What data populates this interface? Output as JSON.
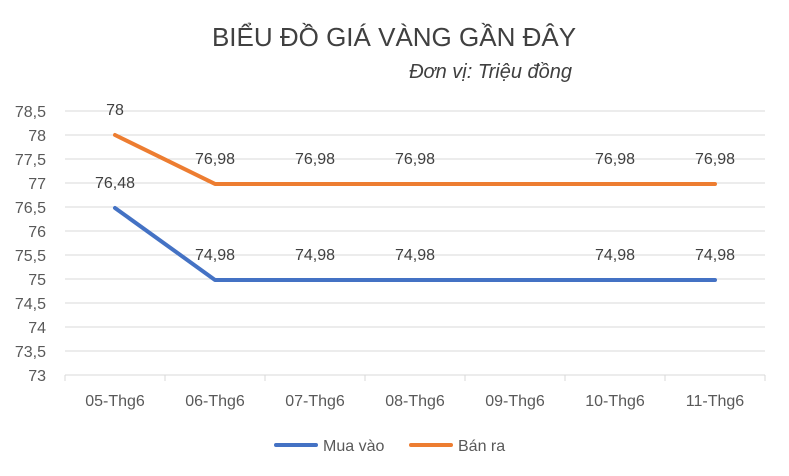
{
  "chart_data": {
    "type": "line",
    "title": "BIỂU ĐỒ GIÁ VÀNG GẦN ĐÂY",
    "subtitle": "Đơn vị: Triệu đồng",
    "categories": [
      "05-Thg6",
      "06-Thg6",
      "07-Thg6",
      "08-Thg6",
      "09-Thg6",
      "10-Thg6",
      "11-Thg6"
    ],
    "ylim": [
      73,
      78.5
    ],
    "yticks": [
      "73",
      "73,5",
      "74",
      "74,5",
      "75",
      "75,5",
      "76",
      "76,5",
      "77",
      "77,5",
      "78",
      "78,5"
    ],
    "grid": true,
    "legend": "bottom",
    "series": [
      {
        "name": "Mua vào",
        "color": "#4472c4",
        "values": [
          76.48,
          74.98,
          74.98,
          74.98,
          74.98,
          74.98,
          74.98
        ],
        "labels": [
          "76,48",
          "74,98",
          "74,98",
          "74,98",
          "",
          "74,98",
          "74,98"
        ]
      },
      {
        "name": "Bán ra",
        "color": "#ed7d31",
        "values": [
          78,
          76.98,
          76.98,
          76.98,
          76.98,
          76.98,
          76.98
        ],
        "labels": [
          "78",
          "76,98",
          "76,98",
          "76,98",
          "",
          "76,98",
          "76,98"
        ]
      }
    ]
  }
}
